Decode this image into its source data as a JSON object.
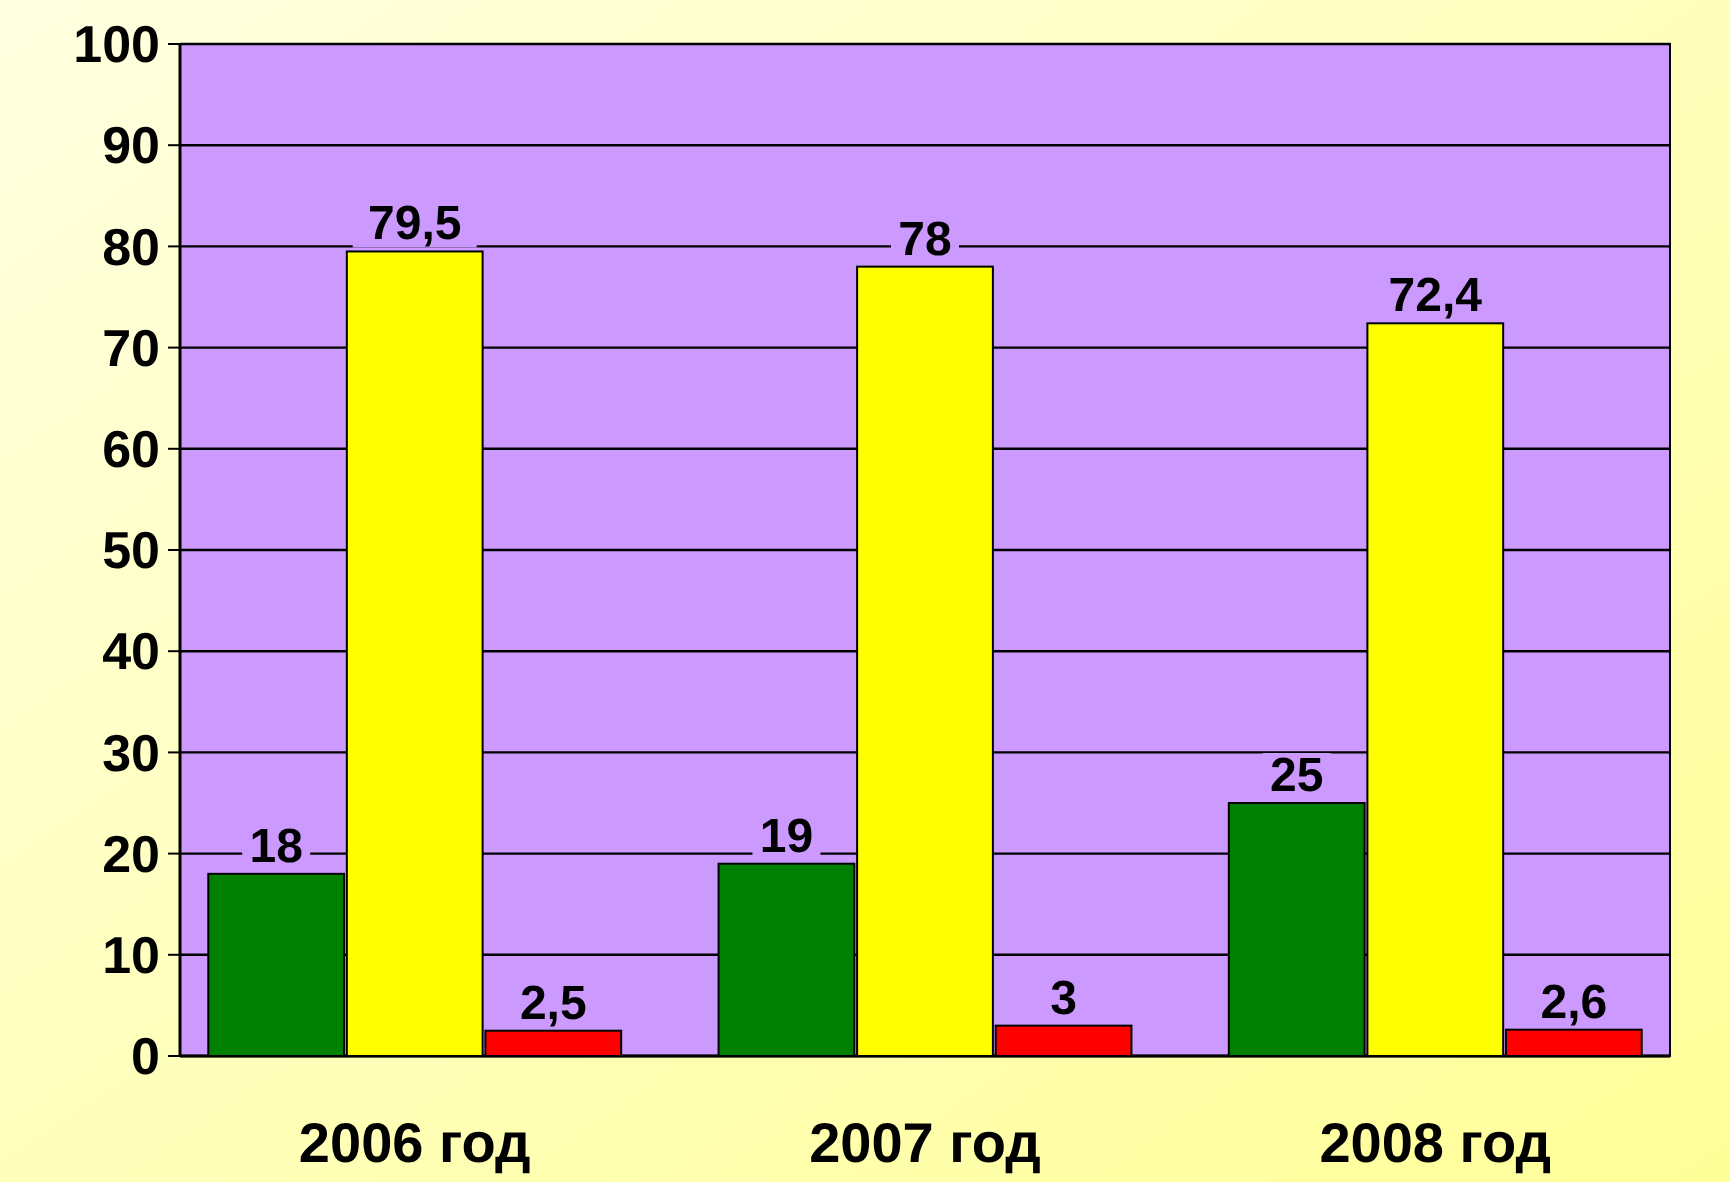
{
  "chart_data": {
    "type": "bar",
    "categories": [
      "2006 год",
      "2007 год",
      "2008 год"
    ],
    "series": [
      {
        "color": "#008000",
        "values": [
          18,
          19,
          25
        ],
        "value_labels": [
          "18",
          "19",
          "25"
        ]
      },
      {
        "color": "#ffff00",
        "values": [
          79.5,
          78,
          72.4
        ],
        "value_labels": [
          "79,5",
          "78",
          "72,4"
        ]
      },
      {
        "color": "#ff0000",
        "values": [
          2.5,
          3,
          2.6
        ],
        "value_labels": [
          "2,5",
          "3",
          "2,6"
        ]
      }
    ],
    "ylim": [
      0,
      100
    ],
    "yticks": [
      0,
      10,
      20,
      30,
      40,
      50,
      60,
      70,
      80,
      90,
      100
    ],
    "grid": "y"
  }
}
